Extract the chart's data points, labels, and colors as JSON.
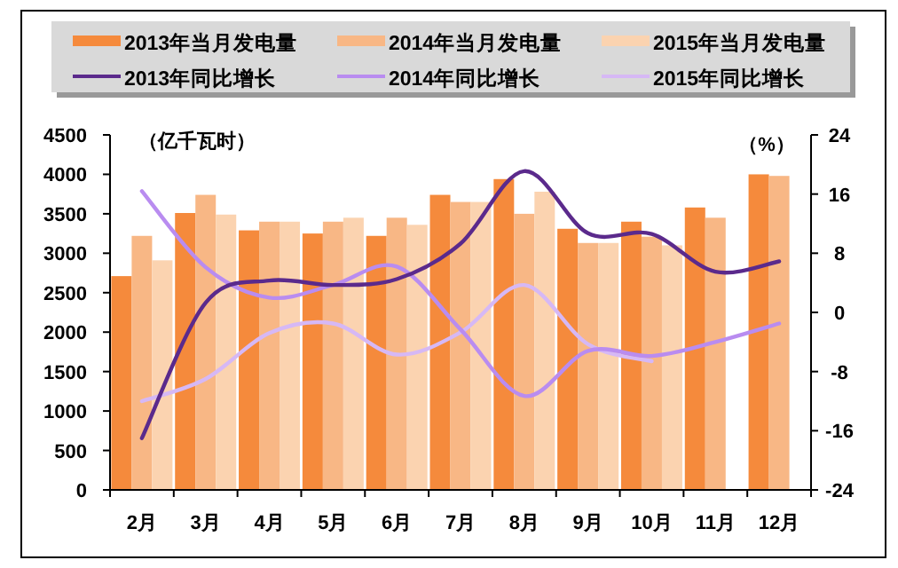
{
  "chart_data": {
    "type": "bar",
    "ylabel": "（亿千瓦时）",
    "y2label": "（%）",
    "categories": [
      "2月",
      "3月",
      "4月",
      "5月",
      "6月",
      "7月",
      "8月",
      "9月",
      "10月",
      "11月",
      "12月"
    ],
    "series": [
      {
        "name": "2013年当月发电量",
        "color": "#f58a3c",
        "values": [
          2710,
          3510,
          3290,
          3250,
          3220,
          3740,
          3940,
          3310,
          3400,
          3580,
          4000
        ]
      },
      {
        "name": "2014年当月发电量",
        "color": "#f8b785",
        "values": [
          3220,
          3740,
          3400,
          3400,
          3450,
          3650,
          3500,
          3130,
          3210,
          3450,
          3980
        ]
      },
      {
        "name": "2015年当月发电量",
        "color": "#fbd3b0",
        "values": [
          2910,
          3490,
          3400,
          3450,
          3360,
          3650,
          3780,
          3130,
          3100,
          null,
          null
        ]
      },
      {
        "name": "2013年同比增长",
        "type": "line",
        "axis": "y2",
        "color": "#5b2a8c",
        "values": [
          -17.0,
          1.3,
          4.3,
          3.7,
          4.5,
          9.3,
          19.1,
          10.7,
          10.6,
          5.5,
          6.9
        ]
      },
      {
        "name": "2014年同比增长",
        "type": "line",
        "axis": "y2",
        "color": "#b98cf0",
        "values": [
          16.4,
          6.1,
          2.0,
          3.7,
          6.2,
          -2.3,
          -11.3,
          -5.2,
          -5.9,
          -4.0,
          -1.5
        ]
      },
      {
        "name": "2015年同比增长",
        "type": "line",
        "axis": "y2",
        "color": "#d6b8f5",
        "values": [
          -12.0,
          -9.0,
          -2.8,
          -1.5,
          -5.7,
          -2.7,
          3.7,
          -4.3,
          -6.6,
          null,
          null
        ]
      }
    ],
    "ylim": [
      0,
      4500
    ],
    "yticks": [
      0,
      500,
      1000,
      1500,
      2000,
      2500,
      3000,
      3500,
      4000,
      4500
    ],
    "y2lim": [
      -24,
      24
    ],
    "y2ticks": [
      -24,
      -16,
      -8,
      0,
      8,
      16,
      24
    ],
    "grid": false,
    "legend": "top",
    "marker": "none",
    "line_style": "solid"
  }
}
